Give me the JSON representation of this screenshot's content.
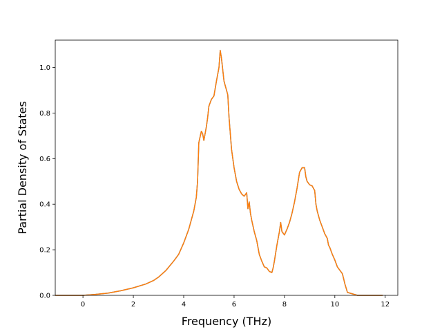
{
  "chart_data": {
    "type": "line",
    "title": "",
    "xlabel": "Frequency (THz)",
    "ylabel": "Partial Density of States",
    "xlim": [
      -1.1,
      12.5
    ],
    "ylim": [
      0.0,
      1.12
    ],
    "xticks": [
      0,
      2,
      4,
      6,
      8,
      10,
      12
    ],
    "yticks": [
      0.0,
      0.2,
      0.4,
      0.6,
      0.8,
      1.0
    ],
    "xtick_labels": [
      "0",
      "2",
      "4",
      "6",
      "8",
      "10",
      "12"
    ],
    "ytick_labels": [
      "0.0",
      "0.2",
      "0.4",
      "0.6",
      "0.8",
      "1.0"
    ],
    "grid": false,
    "legend": "none",
    "series": [
      {
        "color": "#1f77b4",
        "x": [
          -1.1,
          0.0,
          0.5,
          1.0,
          1.5,
          2.0,
          2.5,
          2.8,
          3.0,
          3.3,
          3.6,
          3.8,
          4.0,
          4.2,
          4.4,
          4.5,
          4.55,
          4.6,
          4.7,
          4.75,
          4.8,
          4.9,
          4.95,
          5.0,
          5.1,
          5.2,
          5.3,
          5.4,
          5.45,
          5.5,
          5.6,
          5.75,
          5.8,
          5.9,
          6.0,
          6.1,
          6.2,
          6.3,
          6.4,
          6.5,
          6.55,
          6.6,
          6.65,
          6.7,
          6.8,
          6.9,
          7.0,
          7.1,
          7.2,
          7.3,
          7.4,
          7.5,
          7.55,
          7.6,
          7.7,
          7.8,
          7.85,
          7.9,
          8.0,
          8.1,
          8.2,
          8.3,
          8.4,
          8.5,
          8.6,
          8.7,
          8.8,
          8.85,
          8.9,
          9.0,
          9.1,
          9.2,
          9.25,
          9.3,
          9.4,
          9.5,
          9.6,
          9.7,
          9.75,
          9.8,
          9.9,
          10.0,
          10.1,
          10.2,
          10.3,
          10.4,
          10.5,
          10.9,
          11.9
        ],
        "y": [
          0.0,
          0.0,
          0.004,
          0.01,
          0.02,
          0.033,
          0.05,
          0.065,
          0.08,
          0.11,
          0.15,
          0.18,
          0.23,
          0.29,
          0.37,
          0.43,
          0.5,
          0.67,
          0.72,
          0.71,
          0.68,
          0.74,
          0.78,
          0.83,
          0.86,
          0.875,
          0.94,
          1.0,
          1.075,
          1.04,
          0.94,
          0.88,
          0.78,
          0.64,
          0.56,
          0.5,
          0.465,
          0.445,
          0.435,
          0.45,
          0.38,
          0.41,
          0.36,
          0.33,
          0.28,
          0.24,
          0.18,
          0.15,
          0.125,
          0.12,
          0.105,
          0.1,
          0.12,
          0.15,
          0.22,
          0.28,
          0.32,
          0.28,
          0.265,
          0.29,
          0.32,
          0.36,
          0.41,
          0.47,
          0.54,
          0.56,
          0.56,
          0.52,
          0.5,
          0.485,
          0.48,
          0.46,
          0.4,
          0.37,
          0.33,
          0.3,
          0.27,
          0.25,
          0.22,
          0.21,
          0.18,
          0.155,
          0.125,
          0.11,
          0.095,
          0.05,
          0.013,
          0.0,
          0.0
        ]
      },
      {
        "color": "#ff7f0e",
        "x": [
          -1.1,
          0.0,
          0.5,
          1.0,
          1.5,
          2.0,
          2.5,
          2.8,
          3.0,
          3.3,
          3.6,
          3.8,
          4.0,
          4.2,
          4.4,
          4.5,
          4.55,
          4.6,
          4.7,
          4.75,
          4.8,
          4.9,
          4.95,
          5.0,
          5.1,
          5.2,
          5.3,
          5.4,
          5.45,
          5.5,
          5.6,
          5.75,
          5.8,
          5.9,
          6.0,
          6.1,
          6.2,
          6.3,
          6.4,
          6.5,
          6.55,
          6.6,
          6.65,
          6.7,
          6.8,
          6.9,
          7.0,
          7.1,
          7.2,
          7.3,
          7.4,
          7.5,
          7.55,
          7.6,
          7.7,
          7.8,
          7.85,
          7.9,
          8.0,
          8.1,
          8.2,
          8.3,
          8.4,
          8.5,
          8.6,
          8.7,
          8.8,
          8.85,
          8.9,
          9.0,
          9.1,
          9.2,
          9.25,
          9.3,
          9.4,
          9.5,
          9.6,
          9.7,
          9.75,
          9.8,
          9.9,
          10.0,
          10.1,
          10.2,
          10.3,
          10.4,
          10.5,
          10.9,
          11.9
        ],
        "y": [
          0.0,
          0.0,
          0.004,
          0.01,
          0.02,
          0.033,
          0.05,
          0.065,
          0.08,
          0.11,
          0.15,
          0.18,
          0.23,
          0.29,
          0.37,
          0.43,
          0.5,
          0.67,
          0.72,
          0.71,
          0.68,
          0.74,
          0.78,
          0.83,
          0.86,
          0.875,
          0.94,
          1.0,
          1.075,
          1.04,
          0.94,
          0.88,
          0.78,
          0.64,
          0.56,
          0.5,
          0.465,
          0.445,
          0.435,
          0.45,
          0.38,
          0.41,
          0.36,
          0.33,
          0.28,
          0.24,
          0.18,
          0.15,
          0.125,
          0.12,
          0.105,
          0.1,
          0.12,
          0.15,
          0.22,
          0.28,
          0.32,
          0.28,
          0.265,
          0.29,
          0.32,
          0.36,
          0.41,
          0.47,
          0.54,
          0.56,
          0.56,
          0.52,
          0.5,
          0.485,
          0.48,
          0.46,
          0.4,
          0.37,
          0.33,
          0.3,
          0.27,
          0.25,
          0.22,
          0.21,
          0.18,
          0.155,
          0.125,
          0.11,
          0.095,
          0.05,
          0.013,
          0.0,
          0.0
        ]
      }
    ]
  }
}
